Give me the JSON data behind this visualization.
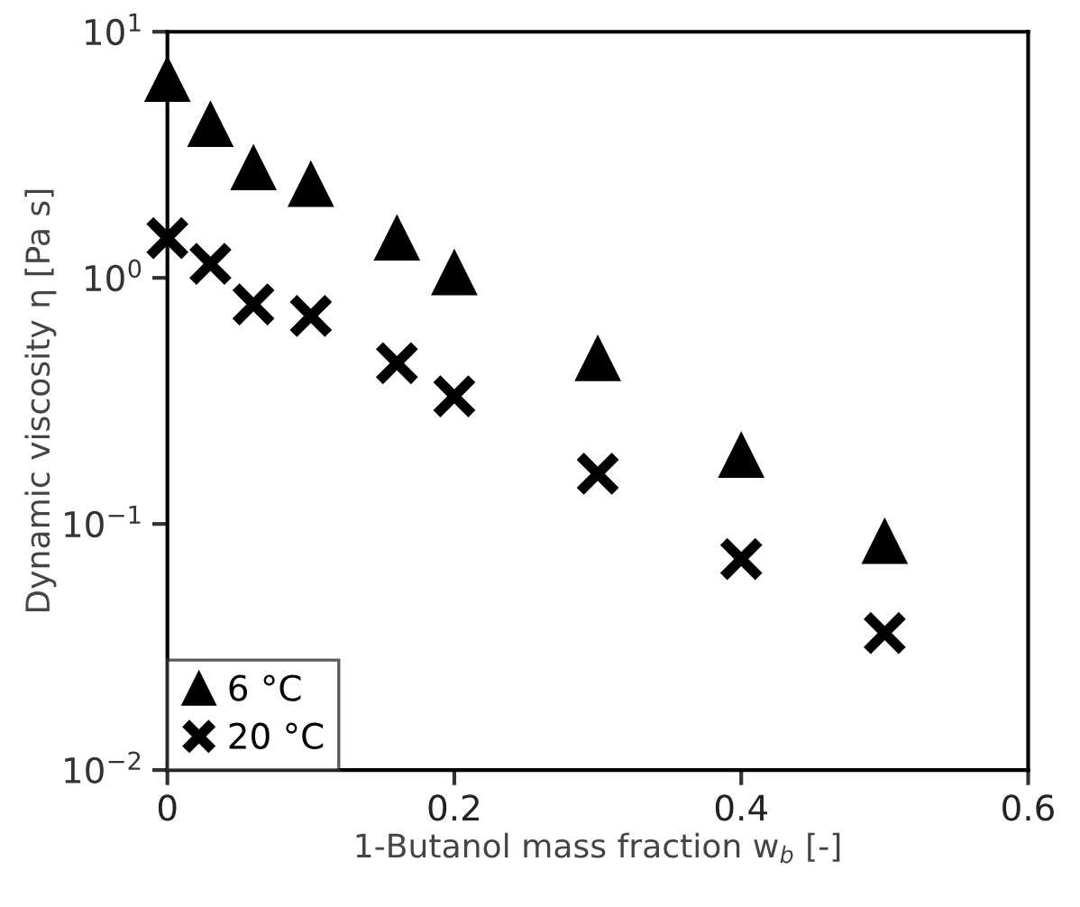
{
  "chart_data": {
    "type": "scatter",
    "xlabel": "1-Butanol mass fraction w$_{b}$ [-]",
    "ylabel": "Dynamic viscosity η [Pa s]",
    "log": "y",
    "xlim": [
      0,
      0.6
    ],
    "xticks": [
      0,
      0.2,
      0.4,
      0.6
    ],
    "ylim": [
      0.01,
      10
    ],
    "yticks": [
      {
        "value": 0.01,
        "label": "10$^{−2}$"
      },
      {
        "value": 0.1,
        "label": "10$^{−1}$"
      },
      {
        "value": 1,
        "label": "10$^{0}$"
      },
      {
        "value": 10,
        "label": "10$^{1}$"
      }
    ],
    "grid": false,
    "legend": "bottom left",
    "x": [
      0,
      0.03,
      0.06,
      0.1,
      0.16,
      0.2,
      0.3,
      0.4,
      0.5
    ],
    "series": [
      {
        "name": "6 °C",
        "color": "#000000",
        "marker": "triangle",
        "values": [
          6.4,
          4.2,
          2.8,
          2.4,
          1.45,
          1.05,
          0.47,
          0.19,
          0.085
        ]
      },
      {
        "name": "20 °C",
        "color": "#000000",
        "marker": "cross",
        "values": [
          1.45,
          1.14,
          0.78,
          0.7,
          0.45,
          0.33,
          0.16,
          0.072,
          0.036
        ]
      }
    ]
  }
}
